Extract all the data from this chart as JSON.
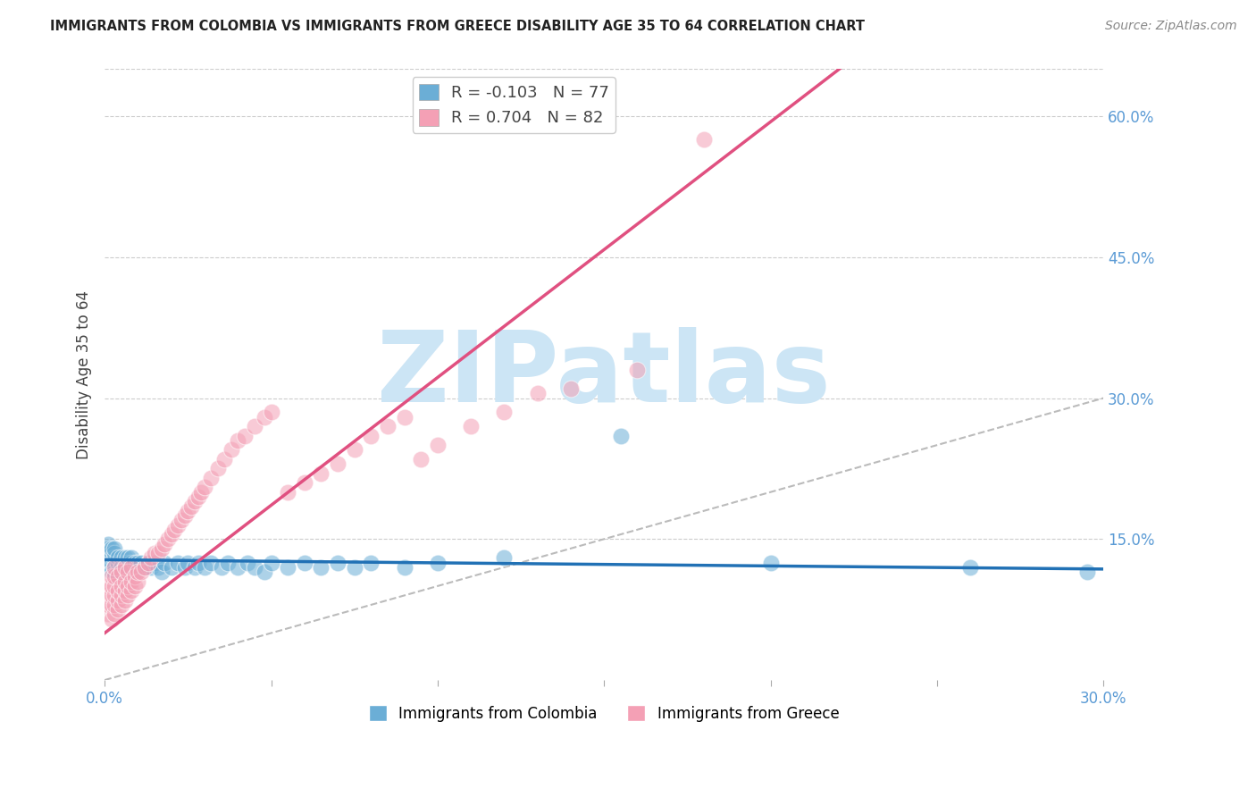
{
  "title": "IMMIGRANTS FROM COLOMBIA VS IMMIGRANTS FROM GREECE DISABILITY AGE 35 TO 64 CORRELATION CHART",
  "source": "Source: ZipAtlas.com",
  "ylabel": "Disability Age 35 to 64",
  "xlim": [
    0.0,
    0.3
  ],
  "ylim": [
    0.0,
    0.65
  ],
  "yticks_right": [
    0.6,
    0.45,
    0.3,
    0.15
  ],
  "ytick_labels_right": [
    "60.0%",
    "45.0%",
    "30.0%",
    "15.0%"
  ],
  "legend_labels": [
    "Immigrants from Colombia",
    "Immigrants from Greece"
  ],
  "colombia_R": -0.103,
  "colombia_N": 77,
  "greece_R": 0.704,
  "greece_N": 82,
  "colombia_color": "#6baed6",
  "greece_color": "#f4a0b5",
  "colombia_line_color": "#2171b5",
  "greece_line_color": "#e05080",
  "watermark": "ZIPatlas",
  "watermark_color": "#cce5f5",
  "colombia_x": [
    0.001,
    0.001,
    0.001,
    0.001,
    0.001,
    0.002,
    0.002,
    0.002,
    0.002,
    0.002,
    0.002,
    0.003,
    0.003,
    0.003,
    0.003,
    0.003,
    0.003,
    0.003,
    0.004,
    0.004,
    0.004,
    0.004,
    0.004,
    0.005,
    0.005,
    0.005,
    0.005,
    0.006,
    0.006,
    0.006,
    0.007,
    0.007,
    0.007,
    0.007,
    0.008,
    0.008,
    0.008,
    0.009,
    0.009,
    0.01,
    0.01,
    0.011,
    0.012,
    0.013,
    0.014,
    0.015,
    0.016,
    0.017,
    0.018,
    0.02,
    0.022,
    0.024,
    0.025,
    0.027,
    0.028,
    0.03,
    0.032,
    0.035,
    0.037,
    0.04,
    0.043,
    0.045,
    0.048,
    0.05,
    0.055,
    0.06,
    0.065,
    0.07,
    0.075,
    0.08,
    0.09,
    0.1,
    0.12,
    0.155,
    0.2,
    0.26,
    0.295
  ],
  "colombia_y": [
    0.13,
    0.14,
    0.135,
    0.125,
    0.145,
    0.12,
    0.13,
    0.135,
    0.125,
    0.14,
    0.115,
    0.11,
    0.125,
    0.13,
    0.12,
    0.135,
    0.14,
    0.115,
    0.12,
    0.125,
    0.13,
    0.115,
    0.11,
    0.125,
    0.13,
    0.12,
    0.115,
    0.125,
    0.12,
    0.13,
    0.125,
    0.12,
    0.115,
    0.13,
    0.125,
    0.12,
    0.13,
    0.125,
    0.115,
    0.125,
    0.12,
    0.125,
    0.12,
    0.125,
    0.12,
    0.125,
    0.12,
    0.115,
    0.125,
    0.12,
    0.125,
    0.12,
    0.125,
    0.12,
    0.125,
    0.12,
    0.125,
    0.12,
    0.125,
    0.12,
    0.125,
    0.12,
    0.115,
    0.125,
    0.12,
    0.125,
    0.12,
    0.125,
    0.12,
    0.125,
    0.12,
    0.125,
    0.13,
    0.26,
    0.125,
    0.12,
    0.115
  ],
  "greece_x": [
    0.001,
    0.001,
    0.001,
    0.001,
    0.002,
    0.002,
    0.002,
    0.002,
    0.002,
    0.003,
    0.003,
    0.003,
    0.003,
    0.003,
    0.003,
    0.004,
    0.004,
    0.004,
    0.004,
    0.005,
    0.005,
    0.005,
    0.005,
    0.006,
    0.006,
    0.006,
    0.006,
    0.007,
    0.007,
    0.007,
    0.008,
    0.008,
    0.008,
    0.009,
    0.009,
    0.01,
    0.01,
    0.011,
    0.012,
    0.013,
    0.014,
    0.015,
    0.016,
    0.017,
    0.018,
    0.019,
    0.02,
    0.021,
    0.022,
    0.023,
    0.024,
    0.025,
    0.026,
    0.027,
    0.028,
    0.029,
    0.03,
    0.032,
    0.034,
    0.036,
    0.038,
    0.04,
    0.042,
    0.045,
    0.048,
    0.05,
    0.055,
    0.06,
    0.065,
    0.07,
    0.075,
    0.08,
    0.085,
    0.09,
    0.095,
    0.1,
    0.11,
    0.12,
    0.13,
    0.14,
    0.16,
    0.18
  ],
  "greece_y": [
    0.07,
    0.08,
    0.09,
    0.1,
    0.065,
    0.08,
    0.09,
    0.1,
    0.11,
    0.07,
    0.08,
    0.09,
    0.1,
    0.11,
    0.12,
    0.075,
    0.085,
    0.095,
    0.11,
    0.08,
    0.09,
    0.1,
    0.115,
    0.085,
    0.095,
    0.105,
    0.12,
    0.09,
    0.1,
    0.115,
    0.095,
    0.105,
    0.12,
    0.1,
    0.11,
    0.105,
    0.115,
    0.115,
    0.12,
    0.125,
    0.13,
    0.135,
    0.135,
    0.14,
    0.145,
    0.15,
    0.155,
    0.16,
    0.165,
    0.17,
    0.175,
    0.18,
    0.185,
    0.19,
    0.195,
    0.2,
    0.205,
    0.215,
    0.225,
    0.235,
    0.245,
    0.255,
    0.26,
    0.27,
    0.28,
    0.285,
    0.2,
    0.21,
    0.22,
    0.23,
    0.245,
    0.26,
    0.27,
    0.28,
    0.235,
    0.25,
    0.27,
    0.285,
    0.305,
    0.31,
    0.33,
    0.575
  ]
}
